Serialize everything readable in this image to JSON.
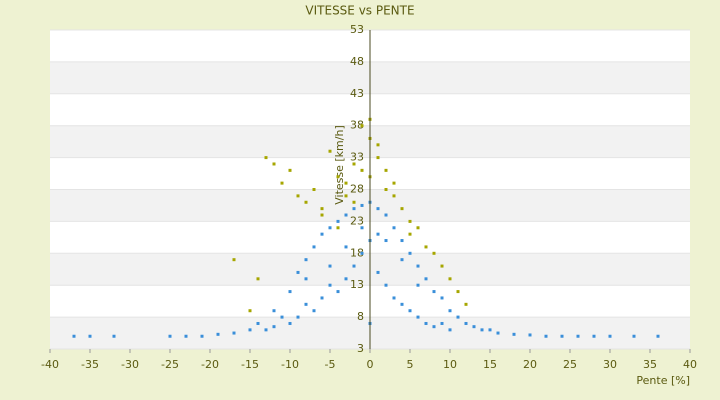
{
  "chart_data": {
    "type": "scatter",
    "title": "VITESSE vs PENTE",
    "x_label": "Pente [%]",
    "y_label": "Vitesse [km/h]",
    "xlim": [
      -40,
      40
    ],
    "xticks": [
      -40,
      -35,
      -30,
      -25,
      -20,
      -15,
      -10,
      -5,
      0,
      5,
      10,
      15,
      20,
      25,
      30,
      35,
      40
    ],
    "ylim": [
      3,
      53
    ],
    "yticks": [
      3,
      8,
      13,
      18,
      23,
      28,
      33,
      38,
      43,
      48,
      53
    ],
    "series": [
      {
        "color": "#a6a600",
        "x": [
          -13,
          -12,
          -11,
          -10,
          -9,
          -8,
          -7,
          -6,
          -5,
          -4,
          -3,
          -2,
          -1,
          0,
          0,
          1,
          2,
          3,
          4,
          5,
          6,
          7,
          8,
          10,
          12,
          -17,
          -14,
          -15,
          -3,
          -1,
          1,
          3,
          -6,
          -4,
          2,
          5,
          9,
          11,
          -2,
          0
        ],
        "values": [
          33,
          32,
          29,
          31,
          27,
          26,
          28,
          25,
          34,
          30,
          29,
          32,
          38,
          36,
          30,
          33,
          31,
          27,
          25,
          23,
          22,
          19,
          18,
          14,
          10,
          17,
          14,
          9,
          27,
          31,
          35,
          29,
          24,
          22,
          28,
          21,
          16,
          12,
          26,
          39
        ]
      },
      {
        "color": "#3a8fd9",
        "x": [
          -37,
          -35,
          -32,
          -25,
          -23,
          -21,
          -19,
          -17,
          -15,
          -14,
          -13,
          -12,
          -12,
          -11,
          -10,
          -10,
          -9,
          -9,
          -8,
          -8,
          -7,
          -7,
          -6,
          -6,
          -5,
          -5,
          -4,
          -4,
          -3,
          -3,
          -2,
          -2,
          -1,
          -1,
          0,
          0,
          0,
          1,
          1,
          2,
          2,
          3,
          3,
          4,
          4,
          5,
          5,
          6,
          6,
          7,
          7,
          8,
          8,
          9,
          9,
          10,
          10,
          11,
          12,
          13,
          14,
          15,
          16,
          18,
          20,
          22,
          24,
          26,
          28,
          30,
          33,
          36,
          -8,
          -5,
          -3,
          2,
          4,
          6,
          -1,
          1
        ],
        "values": [
          5,
          5,
          5,
          5,
          5,
          5,
          5.3,
          5.5,
          6,
          7,
          6,
          9,
          6.5,
          8,
          12,
          7,
          15,
          8,
          17,
          10,
          19,
          9,
          21,
          11,
          22,
          13,
          23,
          12,
          24,
          14,
          25,
          16,
          25.5,
          18,
          26,
          20,
          7,
          25,
          15,
          24,
          13,
          22,
          11,
          20,
          10,
          18,
          9,
          16,
          8,
          14,
          7,
          12,
          6.5,
          11,
          7,
          9,
          6,
          8,
          7,
          6.5,
          6,
          6,
          5.5,
          5.3,
          5.2,
          5,
          5,
          5,
          5,
          5,
          5,
          5,
          14,
          16,
          19,
          20,
          17,
          13,
          22,
          21
        ]
      }
    ]
  }
}
